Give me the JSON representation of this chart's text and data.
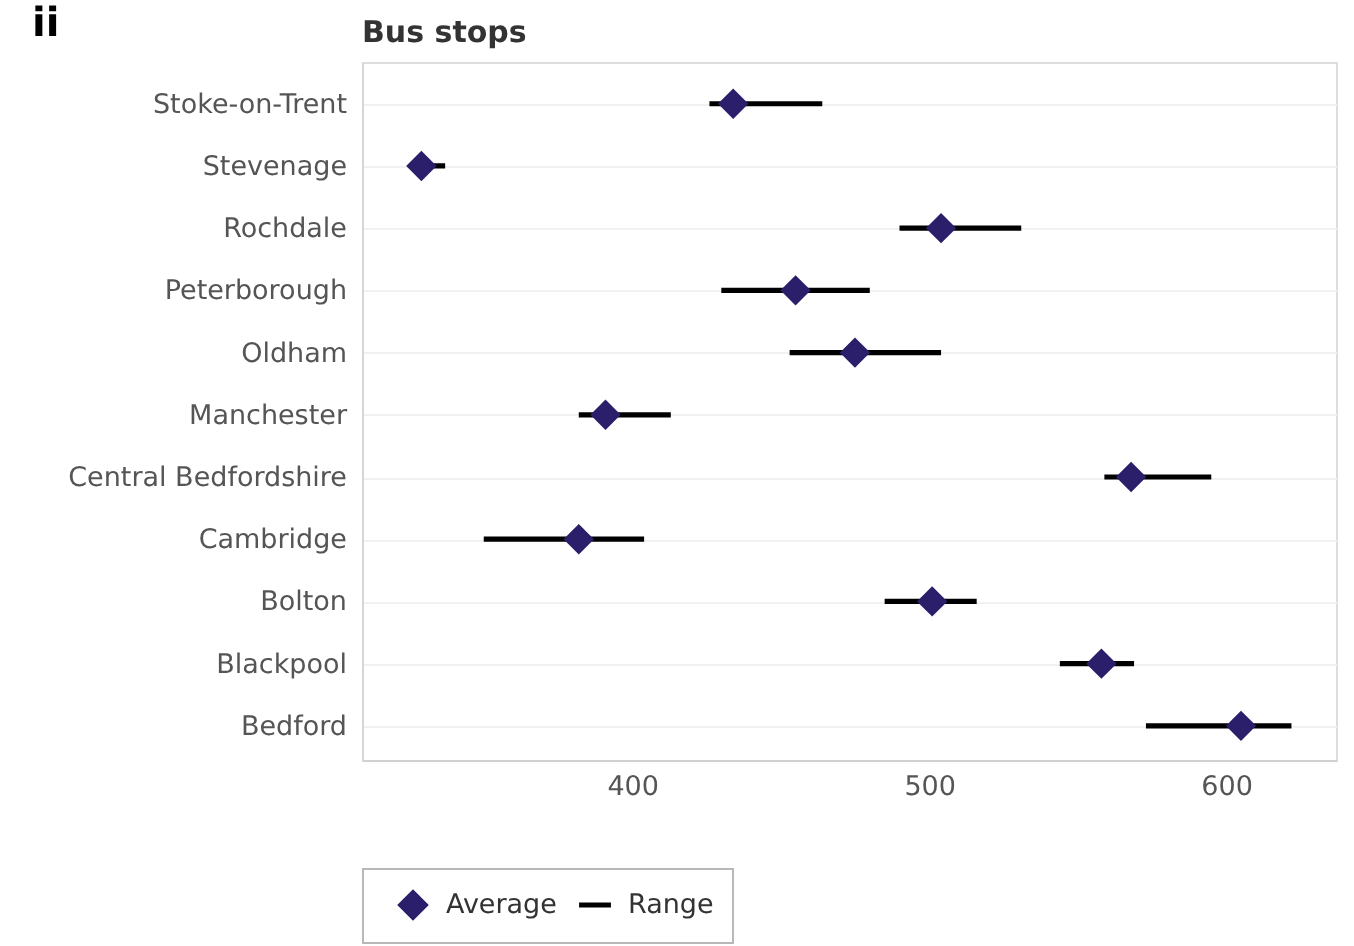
{
  "chart_data": {
    "type": "scatter",
    "title": "Bus stops",
    "annotations": [
      "ii"
    ],
    "orientation": "horizontal",
    "categories": [
      "Stoke-on-Trent",
      "Stevenage",
      "Rochdale",
      "Peterborough",
      "Oldham",
      "Manchester",
      "Central Bedfordshire",
      "Cambridge",
      "Bolton",
      "Blackpool",
      "Bedford"
    ],
    "series": [
      {
        "name": "Average",
        "color": "#2b1f6b",
        "values": [
          434,
          329,
          504,
          455,
          475,
          391,
          568,
          382,
          501,
          558,
          605
        ]
      },
      {
        "name": "Range",
        "type": "bar",
        "color": "#000000",
        "base": [
          426,
          326,
          490,
          430,
          453,
          382,
          559,
          350,
          485,
          544,
          573
        ],
        "values": [
          38,
          11,
          41,
          50,
          51,
          31,
          36,
          54,
          31,
          25,
          49
        ]
      }
    ],
    "xlim": [
      309,
      637
    ],
    "xticks": [
      400,
      500,
      600
    ],
    "marker": "diamond",
    "grid": "y",
    "legend": "bottom left"
  }
}
